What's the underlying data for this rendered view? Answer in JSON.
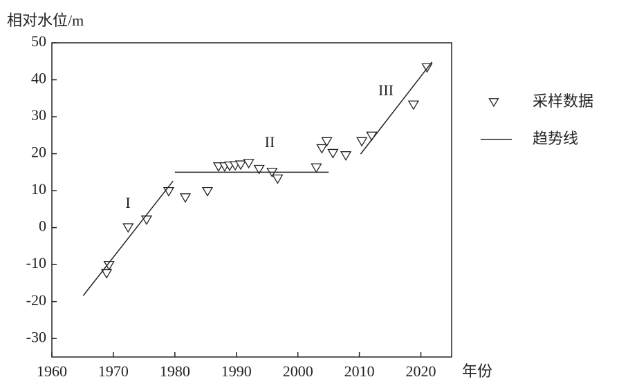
{
  "chart_data": {
    "type": "scatter",
    "y_label": "相对水位/m",
    "x_label": "年份",
    "xlim": [
      1960,
      2025
    ],
    "xticks": [
      1960,
      1970,
      1980,
      1990,
      2000,
      2010,
      2020
    ],
    "ylim": [
      -35,
      50
    ],
    "yticks": [
      -30,
      -20,
      -10,
      0,
      10,
      20,
      30,
      40,
      50
    ],
    "series": [
      {
        "name": "采样数据",
        "type": "scatter",
        "color": "#222222",
        "x": [
          1968.9,
          1969.3,
          1972.4,
          1975.4,
          1979.0,
          1981.7,
          1985.3,
          1987.1,
          1988.1,
          1988.9,
          1989.8,
          1990.7,
          1992.0,
          1993.7,
          1995.8,
          1996.7,
          2003.0,
          2003.9,
          2004.7,
          2005.7,
          2007.8,
          2010.4,
          2012.0,
          2018.8,
          2021.0
        ],
        "values": [
          -12.4,
          -10.2,
          0,
          2.1,
          9.8,
          8.1,
          9.8,
          16.5,
          16.5,
          16.7,
          16.8,
          17.0,
          17.4,
          15.8,
          15.0,
          13.2,
          16.2,
          21.4,
          23.3,
          20.1,
          19.5,
          23.3,
          24.8,
          33.2,
          43.3
        ]
      },
      {
        "name": "趋势线",
        "type": "line",
        "color": "#222222",
        "x": [
          1965.1,
          1979.7,
          null,
          1980,
          2005,
          null,
          2010.2,
          2021.8
        ],
        "values": [
          -18.4,
          12.6,
          null,
          15,
          15,
          null,
          19.9,
          44.8
        ]
      }
    ],
    "annotations": [
      "I",
      "II",
      "III"
    ]
  }
}
